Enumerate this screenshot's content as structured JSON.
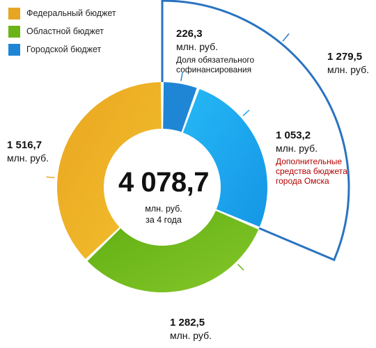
{
  "legend": [
    {
      "label": "Федеральный бюджет",
      "color": "#e6a522"
    },
    {
      "label": "Областной бюджет",
      "color": "#6ab417"
    },
    {
      "label": "Городской бюджет",
      "color": "#1f86d6"
    }
  ],
  "center": {
    "total": "4 078,7",
    "unit_line1": "млн. руб.",
    "unit_line2": "за 4 года"
  },
  "labels": {
    "federal": {
      "value": "1 516,7",
      "unit": "млн. руб."
    },
    "regional": {
      "value": "1 282,5",
      "unit": "млн. руб."
    },
    "city_mandatory": {
      "value": "226,3",
      "unit": "млн. руб.",
      "note": "Доля обязательного софинансирования"
    },
    "city_additional": {
      "value": "1 053,2",
      "unit": "млн. руб.",
      "note": "Дополнительные средства бюджета города Омска"
    },
    "city_total": {
      "value": "1 279,5",
      "unit": "млн. руб."
    }
  },
  "chart_data": {
    "type": "pie",
    "title": "",
    "total": 4078.7,
    "unit": "млн. руб.",
    "slices": [
      {
        "name": "Городской бюджет — доля обязательного софинансирования",
        "value": 226.3,
        "color": "#1f86d6"
      },
      {
        "name": "Городской бюджет — дополнительные средства",
        "value": 1053.2,
        "color": "#19a6ee"
      },
      {
        "name": "Областной бюджет",
        "value": 1282.5,
        "color": "#6ab417"
      },
      {
        "name": "Федеральный бюджет",
        "value": 1516.7,
        "color": "#e6a522"
      }
    ],
    "city_budget_total": 1279.5,
    "legend_position": "top-left"
  }
}
